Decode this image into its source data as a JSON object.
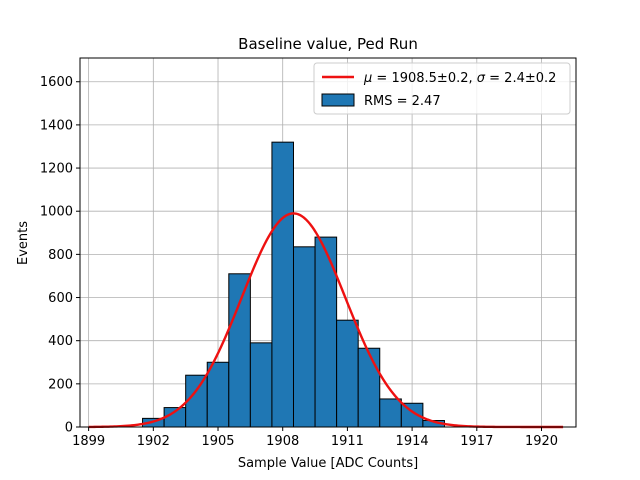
{
  "chart_data": {
    "type": "bar",
    "title": "Baseline value, Ped Run",
    "xlabel": "Sample Value [ADC Counts]",
    "ylabel": "Events",
    "xlim": [
      1898.6,
      1921.6
    ],
    "ylim": [
      0,
      1710
    ],
    "xticks": [
      1899,
      1902,
      1905,
      1908,
      1911,
      1914,
      1917,
      1920
    ],
    "yticks": [
      0,
      200,
      400,
      600,
      800,
      1000,
      1200,
      1400,
      1600
    ],
    "grid": true,
    "legend_position": "top-right",
    "bin_edges": [
      1901.5,
      1902.5,
      1903.5,
      1904.5,
      1905.5,
      1906.5,
      1907.5,
      1908.5,
      1909.5,
      1910.5,
      1911.5,
      1912.5,
      1913.5,
      1914.5,
      1915.5
    ],
    "histogram": {
      "name": "RMS = 2.47",
      "counts": [
        40,
        90,
        240,
        300,
        710,
        390,
        1320,
        835,
        880,
        495,
        365,
        130,
        110,
        30
      ]
    },
    "fit": {
      "label_prefix": "μ",
      "label_value": " = 1908.5±0.2, ",
      "label_sigma": "σ",
      "label_sigma_value": " = 2.4±0.2",
      "mu": 1908.5,
      "sigma": 2.4,
      "amplitude": 990,
      "x_range": [
        1899.0,
        1921.0
      ]
    },
    "colors": {
      "bar_fill": "#1f77b4",
      "bar_edge": "#000000",
      "fit_line": "#ee1111",
      "grid": "#b0b0b0"
    }
  }
}
